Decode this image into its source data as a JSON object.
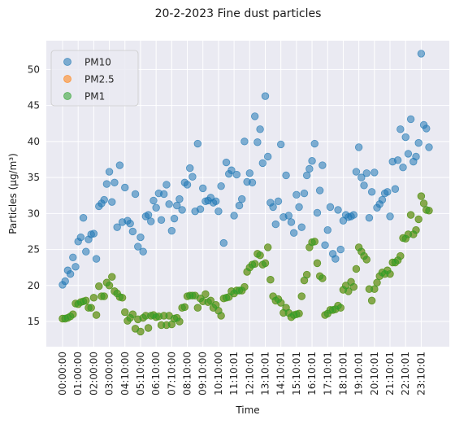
{
  "chart_data": {
    "type": "scatter",
    "title": "20-2-2023 Fine dust particles",
    "xlabel": "Time",
    "ylabel": "Particles (µg/m³)",
    "ylim": [
      11.5,
      54
    ],
    "grid": true,
    "legend_position": "top-left",
    "x_ticks": [
      "00:00:00",
      "01:00:00",
      "02:00:00",
      "03:00:00",
      "04:10:00",
      "05:10:00",
      "06:10:00",
      "07:10:00",
      "08:10:00",
      "09:10:00",
      "10:10:00",
      "11:10:01",
      "12:10:01",
      "13:10:01",
      "14:10:01",
      "15:10:01",
      "16:10:01",
      "17:10:01",
      "18:10:01",
      "19:10:01",
      "20:10:01",
      "21:10:01",
      "22:10:01",
      "23:10:01"
    ],
    "y_ticks": [
      15,
      20,
      25,
      30,
      35,
      40,
      45,
      50
    ],
    "samples_per_tick": 6,
    "series": [
      {
        "name": "PM10",
        "color": "#1f77b4",
        "values": [
          20.1,
          20.6,
          22.1,
          21.6,
          23.9,
          22.6,
          26.1,
          26.7,
          29.4,
          24.7,
          26.4,
          27.1,
          27.2,
          23.7,
          31.0,
          31.4,
          31.9,
          34.1,
          35.8,
          31.6,
          34.3,
          28.1,
          36.7,
          28.8,
          33.6,
          29.0,
          28.6,
          27.5,
          32.7,
          25.4,
          26.7,
          24.7,
          29.6,
          29.8,
          28.9,
          31.8,
          30.8,
          32.8,
          29.1,
          32.7,
          34.0,
          31.3,
          27.6,
          29.3,
          31.1,
          32.0,
          30.5,
          34.3,
          34.0,
          36.3,
          35.1,
          30.3,
          39.7,
          30.6,
          33.5,
          31.7,
          31.8,
          32.2,
          31.5,
          31.7,
          30.3,
          33.8,
          25.9,
          37.1,
          35.5,
          36.0,
          29.7,
          35.4,
          31.1,
          32.0,
          40.0,
          34.4,
          35.6,
          34.3,
          43.5,
          39.9,
          41.7,
          37.0,
          46.3,
          37.9,
          31.5,
          30.9,
          28.5,
          31.7,
          39.6,
          29.5,
          35.3,
          29.7,
          28.8,
          27.3,
          32.6,
          30.9,
          28.1,
          32.8,
          35.3,
          36.2,
          37.3,
          39.7,
          30.1,
          33.2,
          36.7,
          25.6,
          27.7,
          30.9,
          24.4,
          23.7,
          30.5,
          25.0,
          29.0,
          29.8,
          29.5,
          29.6,
          29.8,
          35.8,
          39.2,
          35.0,
          33.9,
          35.6,
          29.4,
          33.0,
          35.7,
          30.8,
          31.3,
          31.9,
          32.8,
          33.0,
          29.6,
          37.2,
          33.4,
          37.4,
          41.7,
          36.4,
          40.6,
          38.3,
          43.1,
          37.2,
          37.9,
          39.8,
          52.2,
          42.3,
          41.8,
          39.2
        ]
      },
      {
        "name": "PM2.5",
        "color": "#ff7f0e",
        "values": [
          15.4,
          15.4,
          15.5,
          15.7,
          16.0,
          17.5,
          17.4,
          17.7,
          17.8,
          17.9,
          16.9,
          16.9,
          18.3,
          15.9,
          19.9,
          18.5,
          18.5,
          20.4,
          20.0,
          21.2,
          19.2,
          18.9,
          18.4,
          18.3,
          16.3,
          15.1,
          15.5,
          16.0,
          14.0,
          15.3,
          13.6,
          15.5,
          15.8,
          14.1,
          15.8,
          15.9,
          15.6,
          15.7,
          14.5,
          15.8,
          14.5,
          15.8,
          14.6,
          15.4,
          15.5,
          15.0,
          16.9,
          17.0,
          18.5,
          18.6,
          18.6,
          18.6,
          16.9,
          18.2,
          17.8,
          18.8,
          17.7,
          17.9,
          16.9,
          17.3,
          16.5,
          15.8,
          18.2,
          18.3,
          18.4,
          19.2,
          18.9,
          19.3,
          19.3,
          19.3,
          19.8,
          21.9,
          22.5,
          22.9,
          23.0,
          24.4,
          24.2,
          22.9,
          23.1,
          25.3,
          20.8,
          18.5,
          17.9,
          18.1,
          17.6,
          16.2,
          16.9,
          16.2,
          15.6,
          15.9,
          16.0,
          16.1,
          18.5,
          20.7,
          21.5,
          25.3,
          26.0,
          26.1,
          23.1,
          21.3,
          21.0,
          15.9,
          16.1,
          16.6,
          16.6,
          16.7,
          17.2,
          16.9,
          19.4,
          20.0,
          19.2,
          20.5,
          19.8,
          22.3,
          25.3,
          24.7,
          24.1,
          23.6,
          19.5,
          17.9,
          19.5,
          20.4,
          21.3,
          21.8,
          21.6,
          22.1,
          21.6,
          23.2,
          23.2,
          23.5,
          24.1,
          26.6,
          26.5,
          27.1,
          29.8,
          27.1,
          27.7,
          29.2,
          32.4,
          31.4,
          30.5,
          30.4
        ]
      },
      {
        "name": "PM1",
        "color": "#2ca02c",
        "values": [
          15.4,
          15.4,
          15.5,
          15.7,
          16.0,
          17.5,
          17.4,
          17.7,
          17.8,
          17.9,
          16.9,
          16.9,
          18.3,
          15.9,
          19.9,
          18.5,
          18.5,
          20.4,
          20.0,
          21.2,
          19.2,
          18.9,
          18.4,
          18.3,
          16.3,
          15.1,
          15.5,
          16.0,
          14.0,
          15.3,
          13.6,
          15.5,
          15.8,
          14.1,
          15.8,
          15.9,
          15.6,
          15.7,
          14.5,
          15.8,
          14.5,
          15.8,
          14.6,
          15.4,
          15.5,
          15.0,
          16.9,
          17.0,
          18.5,
          18.6,
          18.6,
          18.6,
          16.9,
          18.2,
          17.8,
          18.8,
          17.7,
          17.9,
          16.9,
          17.3,
          16.5,
          15.8,
          18.2,
          18.3,
          18.4,
          19.2,
          18.9,
          19.3,
          19.3,
          19.3,
          19.8,
          21.9,
          22.5,
          22.9,
          23.0,
          24.4,
          24.2,
          22.9,
          23.1,
          25.3,
          20.8,
          18.5,
          17.9,
          18.1,
          17.6,
          16.2,
          16.9,
          16.2,
          15.6,
          15.9,
          16.0,
          16.1,
          18.5,
          20.7,
          21.5,
          25.3,
          26.0,
          26.1,
          23.1,
          21.3,
          21.0,
          15.9,
          16.1,
          16.6,
          16.6,
          16.7,
          17.2,
          16.9,
          19.4,
          20.0,
          19.2,
          20.5,
          19.8,
          22.3,
          25.3,
          24.7,
          24.1,
          23.6,
          19.5,
          17.9,
          19.5,
          20.4,
          21.3,
          21.8,
          21.6,
          22.1,
          21.6,
          23.2,
          23.2,
          23.5,
          24.1,
          26.6,
          26.5,
          27.1,
          29.8,
          27.1,
          27.7,
          29.2,
          32.4,
          31.4,
          30.5,
          30.4
        ]
      }
    ]
  }
}
